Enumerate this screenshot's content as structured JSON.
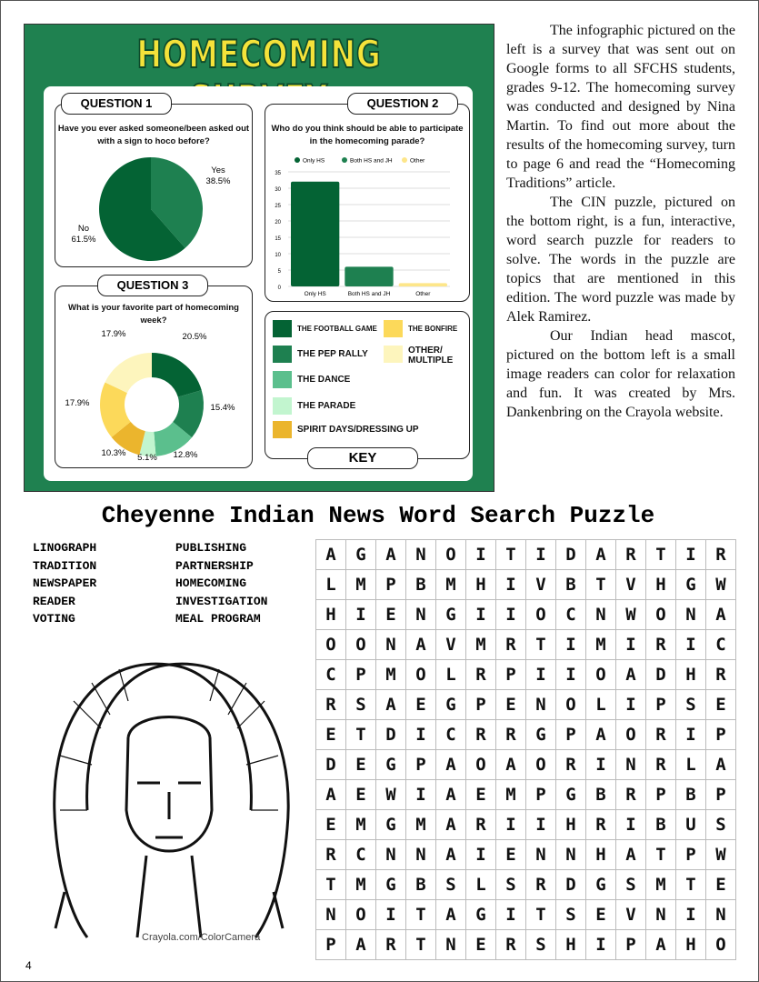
{
  "infographic": {
    "title": "HOMECOMING SURVEY",
    "colors": {
      "background": "#1f8150",
      "title": "#f4e23a"
    },
    "q1": {
      "tag": "QUESTION 1",
      "question": "Have you ever asked someone/been asked out with a sign to hoco before?",
      "chart_data": {
        "type": "pie",
        "slices": [
          {
            "label": "Yes",
            "value": 38.5,
            "display": "38.5%",
            "color": "#1e8050"
          },
          {
            "label": "No",
            "value": 61.5,
            "display": "61.5%",
            "color": "#046334"
          }
        ]
      }
    },
    "q2": {
      "tag": "QUESTION 2",
      "question": "Who do you think should be able to participate in the homecoming parade?",
      "chart_data": {
        "type": "bar",
        "categories": [
          "Only HS",
          "Both HS and JH",
          "Other"
        ],
        "values": [
          32,
          6,
          1
        ],
        "colors": [
          "#046334",
          "#1e8050",
          "#fde68a"
        ],
        "legend": [
          "Only HS",
          "Both HS and JH",
          "Other"
        ],
        "legend_position": "top",
        "ylim": [
          0,
          35
        ],
        "yticks": [
          0,
          5,
          10,
          15,
          20,
          25,
          30,
          35
        ],
        "grid": true
      }
    },
    "q3": {
      "tag": "QUESTION 3",
      "question": "What is your favorite part of homecoming week?",
      "chart_data": {
        "type": "pie",
        "donut": true,
        "slices": [
          {
            "label": "THE FOOTBALL GAME",
            "value": 20.5,
            "display": "20.5%",
            "color": "#046334"
          },
          {
            "label": "THE PEP RALLY",
            "value": 15.4,
            "display": "15.4%",
            "color": "#1e8050"
          },
          {
            "label": "THE DANCE",
            "value": 12.8,
            "display": "12.8%",
            "color": "#5bbf8d"
          },
          {
            "label": "THE PARADE",
            "value": 5.1,
            "display": "5.1%",
            "color": "#c2f5cf"
          },
          {
            "label": "SPIRIT DAYS/DRESSING UP",
            "value": 10.3,
            "display": "10.3%",
            "color": "#ebb52d"
          },
          {
            "label": "THE BONFIRE",
            "value": 17.9,
            "display": "17.9%",
            "color": "#fcd95a"
          },
          {
            "label": "OTHER/ MULTIPLE",
            "value": 17.9,
            "display": "17.9%",
            "color": "#fdf5bd"
          }
        ]
      }
    },
    "key": {
      "tag": "KEY"
    }
  },
  "article": {
    "paragraphs": [
      "The infographic pictured on the left is a survey that was sent out on Google forms to all SFCHS students, grades 9-12. The homecoming survey was conducted and designed by Nina Martin. To find out more about the results of the homecoming survey, turn to page 6 and read the “Homecoming Traditions” article.",
      "The CIN puzzle, pictured on the bottom right, is a fun, interactive, word search puzzle for readers to solve. The words in the puzzle are topics that are mentioned in this edition. The word puzzle was made by Alek Ramirez.",
      "Our Indian head mascot, pictured on the bottom left is a small image readers can color for relaxation and fun. It was created by Mrs. Dankenbring on the Crayola website."
    ]
  },
  "puzzle": {
    "title": "Cheyenne Indian News Word Search Puzzle",
    "words_col1": [
      "LINOGRAPH",
      "TRADITION",
      "NEWSPAPER",
      "READER",
      "VOTING"
    ],
    "words_col2": [
      "PUBLISHING",
      "PARTNERSHIP",
      "HOMECOMING",
      "INVESTIGATION",
      "MEAL PROGRAM"
    ],
    "grid": [
      "AGANOITIDARTIR",
      "LMPBMHIVBTVHGW",
      "HIENGIIOCNWONA",
      "OONAVMRTIMIRIC",
      "CPMOLRPIIOADHR",
      "RSAEGPENOLIPSE",
      "ETDICRRGPAORIP",
      "DEGPAOAORINRLA",
      "AEWIAEMPGBRPBP",
      "EMGMARIIHRIBUS",
      "RCNNAIENNHATPW",
      "TMGBSLSRDGSMTE",
      "NOITAGITSEVNIN",
      "PARTNERSHIPAHO"
    ]
  },
  "mascot": {
    "credit": "Crayola.com/ColorCamera"
  },
  "page_number": "4"
}
